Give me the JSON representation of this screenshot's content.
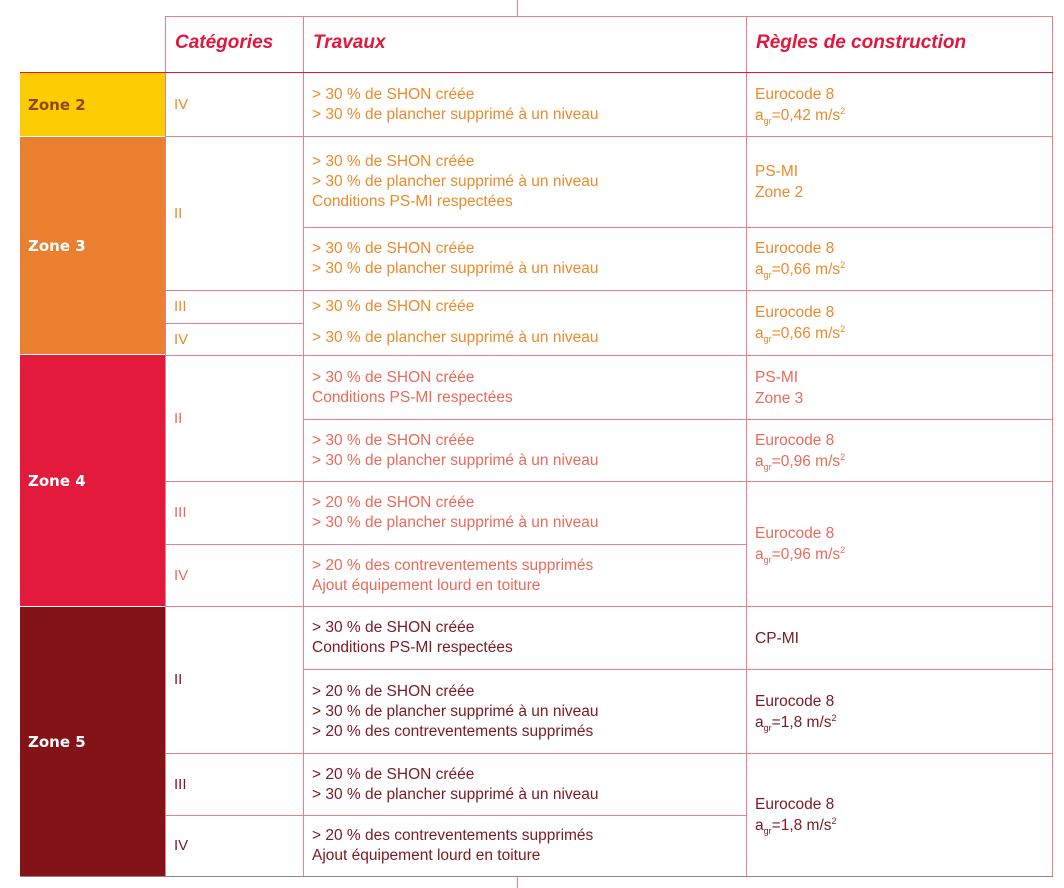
{
  "headers": {
    "categories": "Catégories",
    "travaux": "Travaux",
    "regles": "Règles de construction"
  },
  "zones": {
    "z2": "Zone 2",
    "z3": "Zone 3",
    "z4": "Zone 4",
    "z5": "Zone 5"
  },
  "colors": {
    "zone2": "#fccb00",
    "zone3": "#e97f2f",
    "zone4": "#e31a3c",
    "zone5": "#841318",
    "header_text": "#e3173c",
    "grid": "#e8808c"
  },
  "cats": {
    "r1": "IV",
    "r2": "II",
    "r3": "III",
    "r4": "IV",
    "r5": "II",
    "r6": "III",
    "r7": "IV",
    "r8": "II",
    "r9": "III",
    "r10": "IV"
  },
  "travaux": {
    "r1": [
      "> 30 % de SHON créée",
      "> 30 % de plancher supprimé à un niveau"
    ],
    "r2a": [
      "> 30 % de SHON créée",
      "> 30 % de plancher supprimé à un niveau",
      "Conditions PS-MI respectées"
    ],
    "r2b": [
      "> 30 % de SHON créée",
      "> 30 % de plancher supprimé à un niveau"
    ],
    "r3": [
      "> 30 % de SHON créée"
    ],
    "r4": [
      "> 30 % de plancher supprimé à un niveau"
    ],
    "r5a": [
      "> 30 % de SHON créée",
      "Conditions PS-MI respectées"
    ],
    "r5b": [
      "> 30 % de SHON créée",
      "> 30 % de plancher supprimé à un niveau"
    ],
    "r6": [
      "> 20 % de SHON créée",
      "> 30 % de plancher supprimé à un niveau"
    ],
    "r7": [
      "> 20 % des contreventements supprimés",
      "Ajout équipement lourd en toiture"
    ],
    "r8a": [
      "> 30 % de SHON créée",
      "Conditions PS-MI respectées"
    ],
    "r8b": [
      "> 20 % de SHON créée",
      "> 30 % de plancher supprimé à un niveau",
      "> 20 % des contreventements supprimés"
    ],
    "r9": [
      "> 20 % de SHON créée",
      "> 30 % de plancher supprimé à un niveau"
    ],
    "r10": [
      "> 20 % des contreventements supprimés",
      "Ajout équipement lourd en toiture"
    ]
  },
  "rules": {
    "eurocode": "Eurocode 8",
    "agr_prefix": "a",
    "agr_sub": "gr",
    "unit_sup": "2",
    "r1_val": "=0,42 m/s",
    "r2a": [
      "PS-MI",
      "Zone 2"
    ],
    "r2b_val": "=0,66 m/s",
    "r34_val": "=0,66 m/s",
    "r5a": [
      "PS-MI",
      "Zone 3"
    ],
    "r5b_val": "=0,96 m/s",
    "r67_val": "=0,96 m/s",
    "r8a": "CP-MI",
    "r8b_val": "=1,8 m/s",
    "r910_val": "=1,8 m/s"
  }
}
